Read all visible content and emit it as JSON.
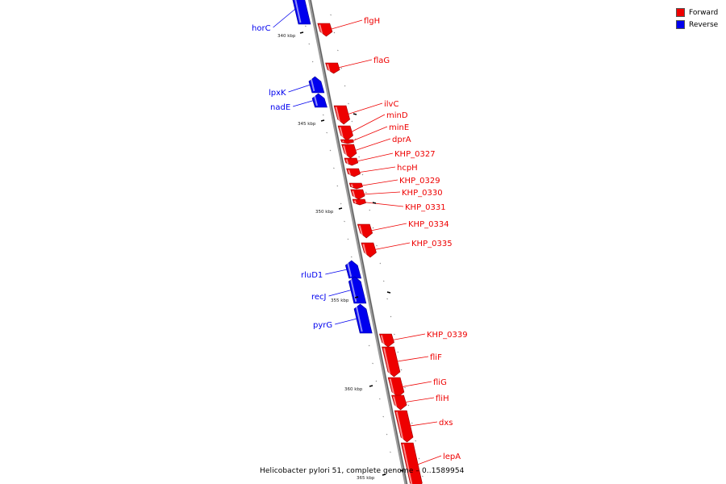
{
  "title": "Helicobacter pylori 51, complete genome",
  "range": "0..1589954",
  "legend": {
    "forward_label": "Forward",
    "reverse_label": "Reverse",
    "forward_color": "#ee0000",
    "reverse_color": "#0000ee"
  },
  "scale": {
    "labels": [
      "340 kbp",
      "345 kbp",
      "350 kbp",
      "355 kbp",
      "360 kbp",
      "365 kbp"
    ]
  },
  "genes": [
    {
      "name": "horC",
      "strand": "reverse"
    },
    {
      "name": "flgH",
      "strand": "forward"
    },
    {
      "name": "flaG",
      "strand": "forward"
    },
    {
      "name": "lpxK",
      "strand": "reverse"
    },
    {
      "name": "nadE",
      "strand": "reverse"
    },
    {
      "name": "ilvC",
      "strand": "forward"
    },
    {
      "name": "minD",
      "strand": "forward"
    },
    {
      "name": "minE",
      "strand": "forward"
    },
    {
      "name": "dprA",
      "strand": "forward"
    },
    {
      "name": "KHP_0327",
      "strand": "forward"
    },
    {
      "name": "hcpH",
      "strand": "forward"
    },
    {
      "name": "KHP_0329",
      "strand": "forward"
    },
    {
      "name": "KHP_0330",
      "strand": "forward"
    },
    {
      "name": "KHP_0331",
      "strand": "forward"
    },
    {
      "name": "KHP_0334",
      "strand": "forward"
    },
    {
      "name": "KHP_0335",
      "strand": "forward"
    },
    {
      "name": "rluD1",
      "strand": "reverse"
    },
    {
      "name": "recJ",
      "strand": "reverse"
    },
    {
      "name": "pyrG",
      "strand": "reverse"
    },
    {
      "name": "KHP_0339",
      "strand": "forward"
    },
    {
      "name": "fliF",
      "strand": "forward"
    },
    {
      "name": "fliG",
      "strand": "forward"
    },
    {
      "name": "fliH",
      "strand": "forward"
    },
    {
      "name": "dxs",
      "strand": "forward"
    },
    {
      "name": "lepA",
      "strand": "forward"
    }
  ]
}
